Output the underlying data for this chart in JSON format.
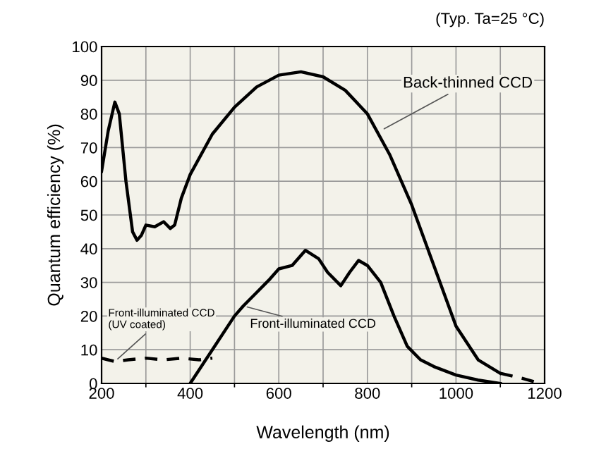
{
  "chart_data": {
    "type": "line",
    "xlabel": "Wavelength (nm)",
    "ylabel": "Quantum efficiency (%)",
    "xlim": [
      200,
      1200
    ],
    "xticks": [
      200,
      400,
      600,
      800,
      1000,
      1200
    ],
    "ylim": [
      0,
      100
    ],
    "yticks": [
      0,
      10,
      20,
      30,
      40,
      50,
      60,
      70,
      80,
      90,
      100
    ],
    "grid": true,
    "legend": false,
    "marker": "none",
    "series": [
      {
        "color": "#000000",
        "line_style": "solid",
        "x": [
          200,
          215,
          230,
          240,
          255,
          270,
          280,
          290,
          300,
          320,
          340,
          355,
          365,
          380,
          400,
          450,
          500,
          550,
          600,
          650,
          700,
          750,
          800,
          850,
          900,
          950,
          1000,
          1050,
          1100
        ],
        "values": [
          63,
          75,
          83.5,
          80,
          60,
          45,
          42.5,
          44,
          47,
          46.5,
          48,
          46,
          47,
          55,
          62,
          74,
          82,
          88,
          91.5,
          92.5,
          91,
          87,
          80,
          68,
          53,
          35,
          17,
          7,
          3
        ]
      },
      {
        "color": "#000000",
        "line_style": "dashed",
        "x": [
          1100,
          1150,
          1190
        ],
        "values": [
          3,
          1.5,
          0
        ]
      },
      {
        "color": "#000000",
        "line_style": "solid",
        "x": [
          400,
          450,
          500,
          520,
          550,
          580,
          600,
          630,
          660,
          690,
          710,
          740,
          760,
          780,
          800,
          830,
          860,
          890,
          920,
          950,
          1000,
          1050,
          1100
        ],
        "values": [
          0,
          10,
          20,
          23,
          27,
          31,
          34,
          35,
          39.5,
          37,
          33,
          29,
          33,
          36.5,
          35,
          30,
          20,
          11,
          7,
          5,
          2.5,
          1,
          0
        ]
      },
      {
        "color": "#000000",
        "line_style": "dashed",
        "x": [
          200,
          230,
          260,
          300,
          340,
          380,
          420,
          450
        ],
        "values": [
          7.5,
          6.5,
          7,
          7.5,
          7,
          7.5,
          7,
          7.5
        ]
      }
    ],
    "annotations": [
      {
        "text": "Back-thinned CCD",
        "x": 830,
        "y": 75
      },
      {
        "text": "Front-illuminated CCD",
        "x": 520,
        "y": 23
      },
      {
        "text": "Front-illuminated CCD\n(UV coated)",
        "x": 230,
        "y": 6.5
      },
      "(Typ. Ta=25 °C)"
    ]
  }
}
